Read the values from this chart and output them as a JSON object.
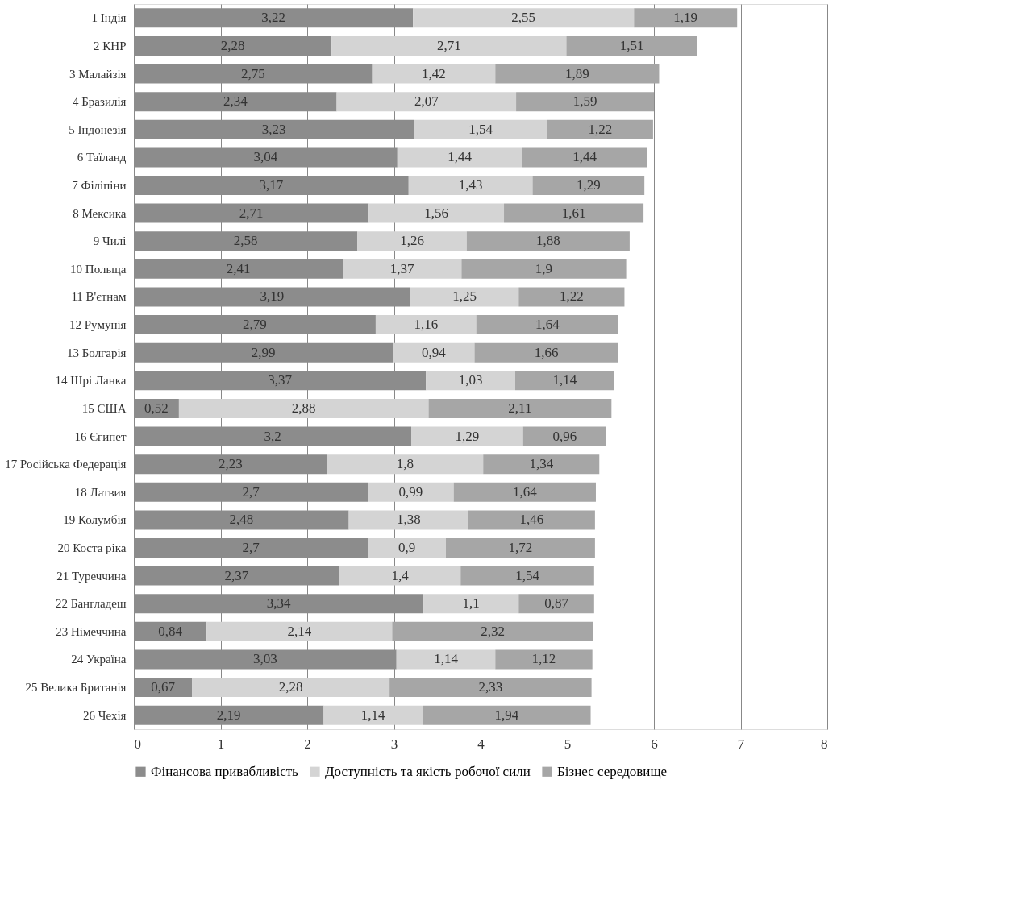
{
  "chart_data": {
    "type": "bar",
    "orientation": "horizontal",
    "stacked": true,
    "categories": [
      "1 Індія",
      "2 КНР",
      "3 Малайзія",
      "4 Бразилія",
      "5 Індонезія",
      "6 Таїланд",
      "7 Філіпіни",
      "8 Мексика",
      "9 Чилі",
      "10 Польща",
      "11 В'єтнам",
      "12 Румунія",
      "13 Болгарія",
      "14 Шрі Ланка",
      "15 США",
      "16 Єгипет",
      "17 Російська Федерація",
      "18 Латвия",
      "19 Колумбія",
      "20 Коста ріка",
      "21 Туреччина",
      "22 Бангладеш",
      "23 Німеччина",
      "24 Україна",
      "25 Велика Британія",
      "26 Чехія"
    ],
    "series": [
      {
        "name": "Фінансова привабливість",
        "color": "#8c8c8c",
        "values": [
          3.22,
          2.28,
          2.75,
          2.34,
          3.23,
          3.04,
          3.17,
          2.71,
          2.58,
          2.41,
          3.19,
          2.79,
          2.99,
          3.37,
          0.52,
          3.2,
          2.23,
          2.7,
          2.48,
          2.7,
          2.37,
          3.34,
          0.84,
          3.03,
          0.67,
          2.19
        ],
        "value_labels": [
          "3,22",
          "2,28",
          "2,75",
          "2,34",
          "3,23",
          "3,04",
          "3,17",
          "2,71",
          "2,58",
          "2,41",
          "3,19",
          "2,79",
          "2,99",
          "3,37",
          "0,52",
          "3,2",
          "2,23",
          "2,7",
          "2,48",
          "2,7",
          "2,37",
          "3,34",
          "0,84",
          "3,03",
          "0,67",
          "2,19"
        ]
      },
      {
        "name": "Доступність та якість робочої сили",
        "color": "#d4d4d4",
        "values": [
          2.55,
          2.71,
          1.42,
          2.07,
          1.54,
          1.44,
          1.43,
          1.56,
          1.26,
          1.37,
          1.25,
          1.16,
          0.94,
          1.03,
          2.88,
          1.29,
          1.8,
          0.99,
          1.38,
          0.9,
          1.4,
          1.1,
          2.14,
          1.14,
          2.28,
          1.14
        ],
        "value_labels": [
          "2,55",
          "2,71",
          "1,42",
          "2,07",
          "1,54",
          "1,44",
          "1,43",
          "1,56",
          "1,26",
          "1,37",
          "1,25",
          "1,16",
          "0,94",
          "1,03",
          "2,88",
          "1,29",
          "1,8",
          "0,99",
          "1,38",
          "0,9",
          "1,4",
          "1,1",
          "2,14",
          "1,14",
          "2,28",
          "1,14"
        ]
      },
      {
        "name": "Бізнес середовище",
        "color": "#a6a6a6",
        "values": [
          1.19,
          1.51,
          1.89,
          1.59,
          1.22,
          1.44,
          1.29,
          1.61,
          1.88,
          1.9,
          1.22,
          1.64,
          1.66,
          1.14,
          2.11,
          0.96,
          1.34,
          1.64,
          1.46,
          1.72,
          1.54,
          0.87,
          2.32,
          1.12,
          2.33,
          1.94
        ],
        "value_labels": [
          "1,19",
          "1,51",
          "1,89",
          "1,59",
          "1,22",
          "1,44",
          "1,29",
          "1,61",
          "1,88",
          "1,9",
          "1,22",
          "1,64",
          "1,66",
          "1,14",
          "2,11",
          "0,96",
          "1,34",
          "1,64",
          "1,46",
          "1,72",
          "1,54",
          "0,87",
          "2,32",
          "1,12",
          "2,33",
          "1,94"
        ]
      }
    ],
    "xlim": [
      0,
      8
    ],
    "xticks": [
      0,
      1,
      2,
      3,
      4,
      5,
      6,
      7,
      8
    ],
    "grid": "x",
    "legend": "bottom"
  }
}
